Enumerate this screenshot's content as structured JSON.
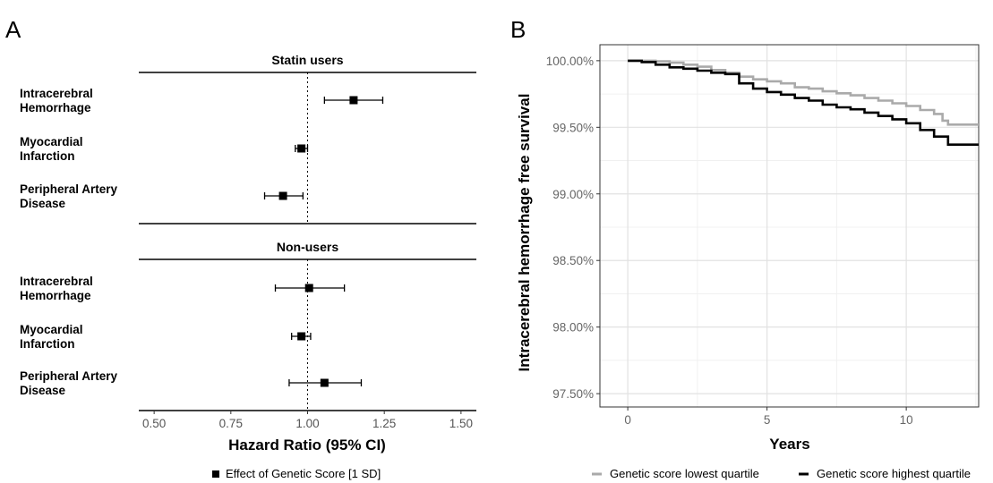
{
  "chart_data": [
    {
      "panel": "A",
      "type": "forest",
      "xlabel": "Hazard Ratio (95% CI)",
      "xlim": [
        0.45,
        1.55
      ],
      "xticks": [
        "0.50",
        "0.75",
        "1.00",
        "1.25",
        "1.50"
      ],
      "reference_line": 1.0,
      "legend": "Effect of Genetic Score [1 SD]",
      "groups": [
        {
          "label": "Statin users",
          "rows": [
            {
              "label_lines": [
                "Intracerebral",
                "Hemorrhage"
              ],
              "estimate": 1.15,
              "lower": 1.055,
              "upper": 1.245
            },
            {
              "label_lines": [
                "Myocardial",
                "Infarction"
              ],
              "estimate": 0.98,
              "lower": 0.96,
              "upper": 1.0
            },
            {
              "label_lines": [
                "Peripheral Artery",
                "Disease"
              ],
              "estimate": 0.92,
              "lower": 0.86,
              "upper": 0.985
            }
          ]
        },
        {
          "label": "Non-users",
          "rows": [
            {
              "label_lines": [
                "Intracerebral",
                "Hemorrhage"
              ],
              "estimate": 1.005,
              "lower": 0.895,
              "upper": 1.12
            },
            {
              "label_lines": [
                "Myocardial",
                "Infarction"
              ],
              "estimate": 0.98,
              "lower": 0.948,
              "upper": 1.01
            },
            {
              "label_lines": [
                "Peripheral Artery",
                "Disease"
              ],
              "estimate": 1.055,
              "lower": 0.94,
              "upper": 1.175
            }
          ]
        }
      ]
    },
    {
      "panel": "B",
      "type": "line",
      "step": true,
      "xlabel": "Years",
      "ylabel": "Intracerebral hemorrhage free survival",
      "xlim": [
        -1,
        12.6
      ],
      "ylim": [
        97.4,
        100.12
      ],
      "xticks": [
        "0",
        "5",
        "10"
      ],
      "yticks": [
        "97.50%",
        "98.00%",
        "98.50%",
        "99.00%",
        "99.50%",
        "100.00%"
      ],
      "grid": true,
      "legend_position": "bottom",
      "series": [
        {
          "name": "Genetic score lowest quartile",
          "color": "#aaaaaa",
          "x": [
            0,
            0.5,
            1.0,
            1.5,
            2.0,
            2.5,
            3.0,
            3.5,
            4.0,
            4.5,
            5.0,
            5.5,
            6.0,
            6.5,
            7.0,
            7.5,
            8.0,
            8.5,
            9.0,
            9.5,
            10.0,
            10.5,
            11.0,
            11.3,
            11.5,
            12.0,
            12.6
          ],
          "y": [
            100.0,
            100.0,
            99.995,
            99.985,
            99.97,
            99.955,
            99.93,
            99.91,
            99.88,
            99.86,
            99.845,
            99.83,
            99.8,
            99.79,
            99.77,
            99.755,
            99.74,
            99.72,
            99.7,
            99.68,
            99.66,
            99.63,
            99.6,
            99.55,
            99.52,
            99.52,
            99.52
          ]
        },
        {
          "name": "Genetic score highest quartile",
          "color": "#000000",
          "x": [
            0,
            0.5,
            1.0,
            1.5,
            2.0,
            2.5,
            3.0,
            3.5,
            4.0,
            4.5,
            5.0,
            5.5,
            6.0,
            6.5,
            7.0,
            7.5,
            8.0,
            8.5,
            9.0,
            9.5,
            10.0,
            10.5,
            11.0,
            11.5,
            12.0,
            12.6
          ],
          "y": [
            100.0,
            99.99,
            99.97,
            99.95,
            99.94,
            99.925,
            99.91,
            99.9,
            99.83,
            99.79,
            99.765,
            99.745,
            99.72,
            99.7,
            99.67,
            99.65,
            99.635,
            99.61,
            99.585,
            99.56,
            99.53,
            99.48,
            99.43,
            99.37,
            99.37,
            99.37
          ]
        }
      ]
    }
  ]
}
